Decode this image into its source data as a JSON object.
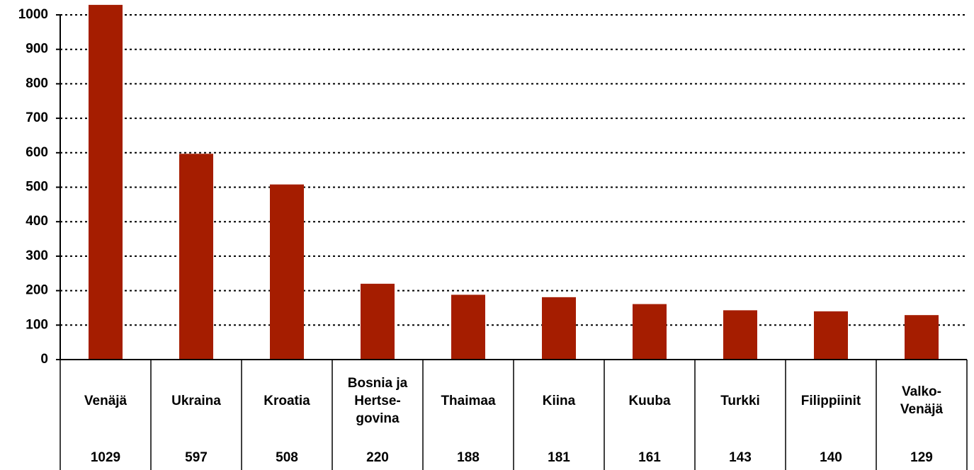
{
  "chart_data": {
    "type": "bar",
    "categories": [
      "Venäjä",
      "Ukraina",
      "Kroatia",
      "Bosnia ja\nHertse-\ngovina",
      "Thaimaa",
      "Kiina",
      "Kuuba",
      "Turkki",
      "Filippiinit",
      "Valko-\nVenäjä"
    ],
    "values": [
      1029,
      597,
      508,
      220,
      188,
      181,
      161,
      143,
      140,
      129
    ],
    "color": "#a51d00",
    "ylim": [
      0,
      1000
    ],
    "yticks": [
      0,
      100,
      200,
      300,
      400,
      500,
      600,
      700,
      800,
      900,
      1000
    ],
    "grid": true
  }
}
